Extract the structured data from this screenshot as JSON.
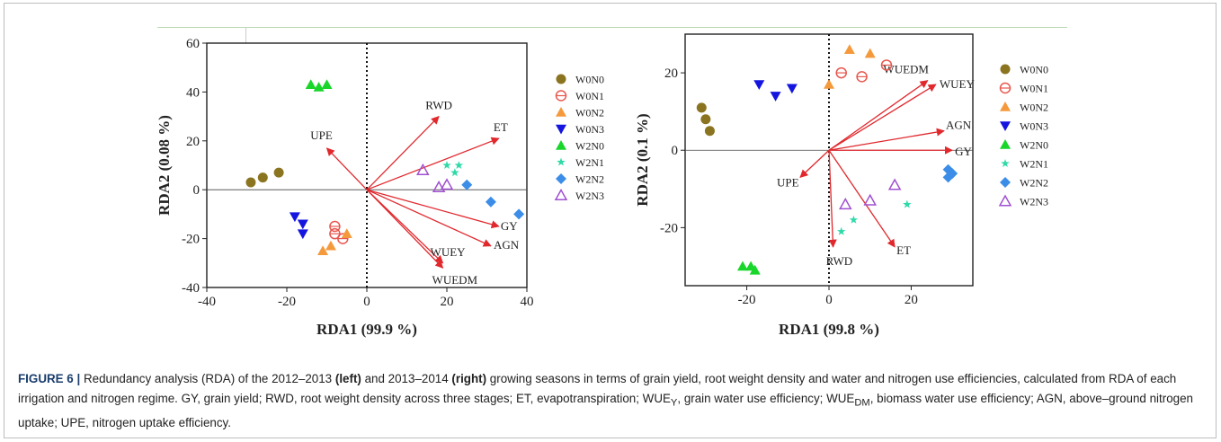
{
  "caption": {
    "label": "FIGURE 6 |",
    "p1": " Redundancy analysis (RDA) of the 2012–2013 ",
    "left_word": "(left)",
    "p2": " and 2013–2014 ",
    "right_word": "(right)",
    "p3": " growing seasons in terms of grain yield, root weight density and water and nitrogen use efficiencies, calculated from RDA of each irrigation and nitrogen regime. GY, grain yield; RWD, root weight density across three stages; ET, evapotranspiration; WUE",
    "sub_y": "Y",
    "p4": ", grain water use efficiency; WUE",
    "sub_dm": "DM",
    "p5": ", biomass water use efficiency; AGN, above–ground nitrogen uptake; UPE, nitrogen uptake efficiency."
  },
  "colors": {
    "W0N0": "#8b7420",
    "W0N1": "#e8574e",
    "W0N2": "#f59a3c",
    "W0N3": "#1515e0",
    "W2N0": "#18d62a",
    "W2N1": "#2fd9a8",
    "W2N2": "#3b8de8",
    "W2N3": "#a050d0",
    "vector": "#e0282d"
  },
  "chart_data": [
    {
      "type": "scatter",
      "subtype": "rda-biplot",
      "xlabel": "RDA1 (99.9 %)",
      "ylabel": "RDA2 (0.08 %)",
      "xlim": [
        -40,
        40
      ],
      "ylim": [
        -40,
        60
      ],
      "xticks": [
        "-40",
        "-20",
        "0",
        "20",
        "40"
      ],
      "yticks": [
        "-40",
        "-20",
        "0",
        "20",
        "40",
        "60"
      ],
      "legend": [
        "W0N0",
        "W0N1",
        "W0N2",
        "W0N3",
        "W2N0",
        "W2N1",
        "W2N2",
        "W2N3"
      ],
      "vectors": [
        {
          "label": "RWD",
          "x": 18,
          "y": 30
        },
        {
          "label": "ET",
          "x": 33,
          "y": 21
        },
        {
          "label": "UPE",
          "x": -10,
          "y": 17
        },
        {
          "label": "GY",
          "x": 33,
          "y": -15
        },
        {
          "label": "AGN",
          "x": 31,
          "y": -23
        },
        {
          "label": "WUEY",
          "x": 19,
          "y": -30
        },
        {
          "label": "WUEDM",
          "x": 19,
          "y": -32
        }
      ],
      "series": [
        {
          "name": "W0N0",
          "marker": "circle",
          "points": [
            [
              -29,
              3
            ],
            [
              -26,
              5
            ],
            [
              -22,
              7
            ]
          ]
        },
        {
          "name": "W0N1",
          "marker": "open-circle",
          "points": [
            [
              -8,
              -15
            ],
            [
              -8,
              -18
            ],
            [
              -6,
              -20
            ]
          ]
        },
        {
          "name": "W0N2",
          "marker": "triangle-up",
          "points": [
            [
              -11,
              -25
            ],
            [
              -9,
              -23
            ],
            [
              -5,
              -18
            ]
          ]
        },
        {
          "name": "W0N3",
          "marker": "triangle-down",
          "points": [
            [
              -18,
              -11
            ],
            [
              -16,
              -14
            ],
            [
              -16,
              -18
            ]
          ]
        },
        {
          "name": "W2N0",
          "marker": "triangle-up",
          "points": [
            [
              -14,
              43
            ],
            [
              -12,
              42
            ],
            [
              -10,
              43
            ]
          ]
        },
        {
          "name": "W2N1",
          "marker": "star",
          "points": [
            [
              20,
              10
            ],
            [
              22,
              7
            ],
            [
              23,
              10
            ]
          ]
        },
        {
          "name": "W2N2",
          "marker": "diamond",
          "points": [
            [
              25,
              2
            ],
            [
              31,
              -5
            ],
            [
              38,
              -10
            ]
          ]
        },
        {
          "name": "W2N3",
          "marker": "open-triangle-up",
          "points": [
            [
              14,
              8
            ],
            [
              18,
              1
            ],
            [
              20,
              2
            ]
          ]
        }
      ]
    },
    {
      "type": "scatter",
      "subtype": "rda-biplot",
      "xlabel": "RDA1 (99.8 %)",
      "ylabel": "RDA2 (0.1 %)",
      "xlim": [
        -35,
        35
      ],
      "ylim": [
        -35,
        30
      ],
      "xticks": [
        "-20",
        "0",
        "20"
      ],
      "yticks": [
        "-20",
        "0",
        "20"
      ],
      "legend": [
        "W0N0",
        "W0N1",
        "W0N2",
        "W0N3",
        "W2N0",
        "W2N1",
        "W2N2",
        "W2N3"
      ],
      "vectors": [
        {
          "label": "WUEDM",
          "x": 24,
          "y": 18
        },
        {
          "label": "WUEY",
          "x": 26,
          "y": 17
        },
        {
          "label": "AGN",
          "x": 28,
          "y": 5
        },
        {
          "label": "GY",
          "x": 30,
          "y": 0
        },
        {
          "label": "UPE",
          "x": -7,
          "y": -7
        },
        {
          "label": "RWD",
          "x": 1,
          "y": -25
        },
        {
          "label": "ET",
          "x": 16,
          "y": -25
        }
      ],
      "series": [
        {
          "name": "W0N0",
          "marker": "circle",
          "points": [
            [
              -31,
              11
            ],
            [
              -30,
              8
            ],
            [
              -29,
              5
            ]
          ]
        },
        {
          "name": "W0N1",
          "marker": "open-circle",
          "points": [
            [
              3,
              20
            ],
            [
              8,
              19
            ],
            [
              14,
              22
            ]
          ]
        },
        {
          "name": "W0N2",
          "marker": "triangle-up",
          "points": [
            [
              0,
              17
            ],
            [
              5,
              26
            ],
            [
              10,
              25
            ]
          ]
        },
        {
          "name": "W0N3",
          "marker": "triangle-down",
          "points": [
            [
              -17,
              17
            ],
            [
              -13,
              14
            ],
            [
              -9,
              16
            ]
          ]
        },
        {
          "name": "W2N0",
          "marker": "triangle-up",
          "points": [
            [
              -21,
              -30
            ],
            [
              -19,
              -30
            ],
            [
              -18,
              -31
            ]
          ]
        },
        {
          "name": "W2N1",
          "marker": "star",
          "points": [
            [
              3,
              -21
            ],
            [
              6,
              -18
            ],
            [
              19,
              -14
            ]
          ]
        },
        {
          "name": "W2N2",
          "marker": "diamond",
          "points": [
            [
              29,
              -5
            ],
            [
              29,
              -7
            ],
            [
              30,
              -6
            ]
          ]
        },
        {
          "name": "W2N3",
          "marker": "open-triangle-up",
          "points": [
            [
              4,
              -14
            ],
            [
              10,
              -13
            ],
            [
              16,
              -9
            ]
          ]
        }
      ]
    }
  ]
}
